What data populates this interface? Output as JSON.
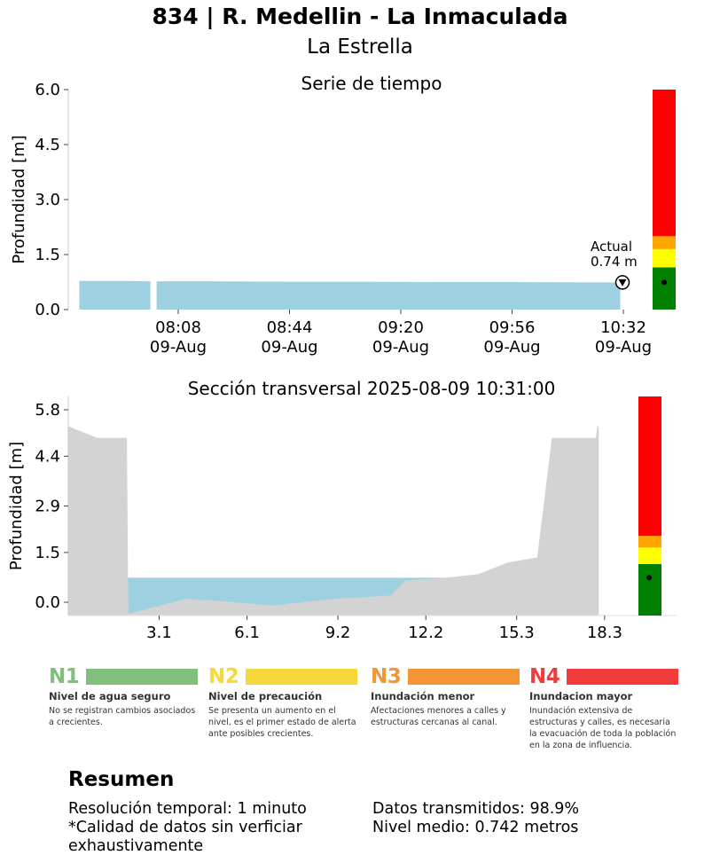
{
  "header": {
    "title": "834 | R. Medellin - La Inmaculada",
    "subtitle": "La Estrella"
  },
  "chart_data": [
    {
      "type": "area",
      "title": "Serie de tiempo",
      "ylabel": "Profundidad [m]",
      "ylim": [
        0,
        6.0
      ],
      "yticks": [
        "0.0",
        "1.5",
        "3.0",
        "4.5",
        "6.0"
      ],
      "xticks": [
        {
          "time": "08:08",
          "date": "09-Aug"
        },
        {
          "time": "08:44",
          "date": "09-Aug"
        },
        {
          "time": "09:20",
          "date": "09-Aug"
        },
        {
          "time": "09:56",
          "date": "09-Aug"
        },
        {
          "time": "10:32",
          "date": "09-Aug"
        }
      ],
      "series": [
        {
          "x": [
            "07:36",
            "07:43",
            "07:50",
            "07:57",
            "07:59"
          ],
          "y": [
            0.78,
            0.78,
            0.78,
            0.77,
            0.77
          ]
        },
        {
          "x": [
            "08:01",
            "08:20",
            "08:44",
            "09:08",
            "09:32",
            "09:56",
            "10:20",
            "10:31"
          ],
          "y": [
            0.77,
            0.77,
            0.76,
            0.76,
            0.75,
            0.75,
            0.74,
            0.74
          ]
        }
      ],
      "current": {
        "label": "Actual",
        "value_label": "0.74 m",
        "value": 0.74
      },
      "alert_levels": [
        {
          "from": 0,
          "to": 1.15,
          "color": "#008000"
        },
        {
          "from": 1.15,
          "to": 1.65,
          "color": "#ffff00"
        },
        {
          "from": 1.65,
          "to": 2.0,
          "color": "#ffa500"
        },
        {
          "from": 2.0,
          "to": 6.0,
          "color": "#ff0000"
        }
      ],
      "area_color": "#9dd1e1",
      "grid": false
    },
    {
      "type": "area",
      "title": "Sección transversal 2025-08-09 10:31:00",
      "ylabel": "Profundidad [m]",
      "xlim": [
        0,
        19.8
      ],
      "ylim": [
        -0.4,
        6.2
      ],
      "yticks": [
        "0.0",
        "1.5",
        "2.9",
        "4.4",
        "5.8"
      ],
      "xticks": [
        "3.1",
        "6.1",
        "9.2",
        "12.2",
        "15.3",
        "18.3"
      ],
      "terrain": {
        "x": [
          0,
          1.0,
          2.0,
          2.05,
          4.0,
          5.0,
          7.0,
          9.0,
          11.0,
          11.5,
          13.0,
          14.0,
          15.0,
          16.0,
          16.5,
          18.0,
          18.05,
          18.1
        ],
        "y": [
          5.3,
          4.95,
          4.95,
          -0.35,
          0.1,
          0.05,
          -0.1,
          0.1,
          0.2,
          0.65,
          0.75,
          0.85,
          1.2,
          1.35,
          4.95,
          4.95,
          5.3,
          5.3
        ]
      },
      "water_level": 0.74,
      "water_extent": [
        2.0,
        13.6
      ],
      "alert_levels": [
        {
          "from": -0.4,
          "to": 1.15,
          "color": "#008000"
        },
        {
          "from": 1.15,
          "to": 1.65,
          "color": "#ffff00"
        },
        {
          "from": 1.65,
          "to": 2.0,
          "color": "#ffa500"
        },
        {
          "from": 2.0,
          "to": 6.2,
          "color": "#ff0000"
        }
      ],
      "terrain_color": "#d3d3d3",
      "water_color": "#9dd1e1",
      "grid": false
    }
  ],
  "legend": [
    {
      "code": "N1",
      "color": "#7fbf7b",
      "name": "Nivel de agua seguro",
      "description": "No se registran cambios asociados a crecientes."
    },
    {
      "code": "N2",
      "color": "#f6d83c",
      "name": "Nivel de precaución",
      "description": "Se presenta un aumento en el nivel, es el primer estado de alerta ante posibles crecientes."
    },
    {
      "code": "N3",
      "color": "#f39533",
      "name": "Inundación menor",
      "description": "Afectaciones menores a calles y estructuras cercanas al canal."
    },
    {
      "code": "N4",
      "color": "#f23c3c",
      "name": "Inundacion mayor",
      "description": "Inundación extensiva de estructuras y calles, es necesaria la evacuación de toda la población en la zona de influencia."
    }
  ],
  "resumen": {
    "title": "Resumen",
    "resolution": "Resolución temporal: 1 minuto",
    "quality_note": "*Calidad de datos sin verficiar exhaustivamente",
    "transmitted": "Datos transmitidos: 98.9%",
    "mean_level": "Nivel medio: 0.742 metros"
  }
}
